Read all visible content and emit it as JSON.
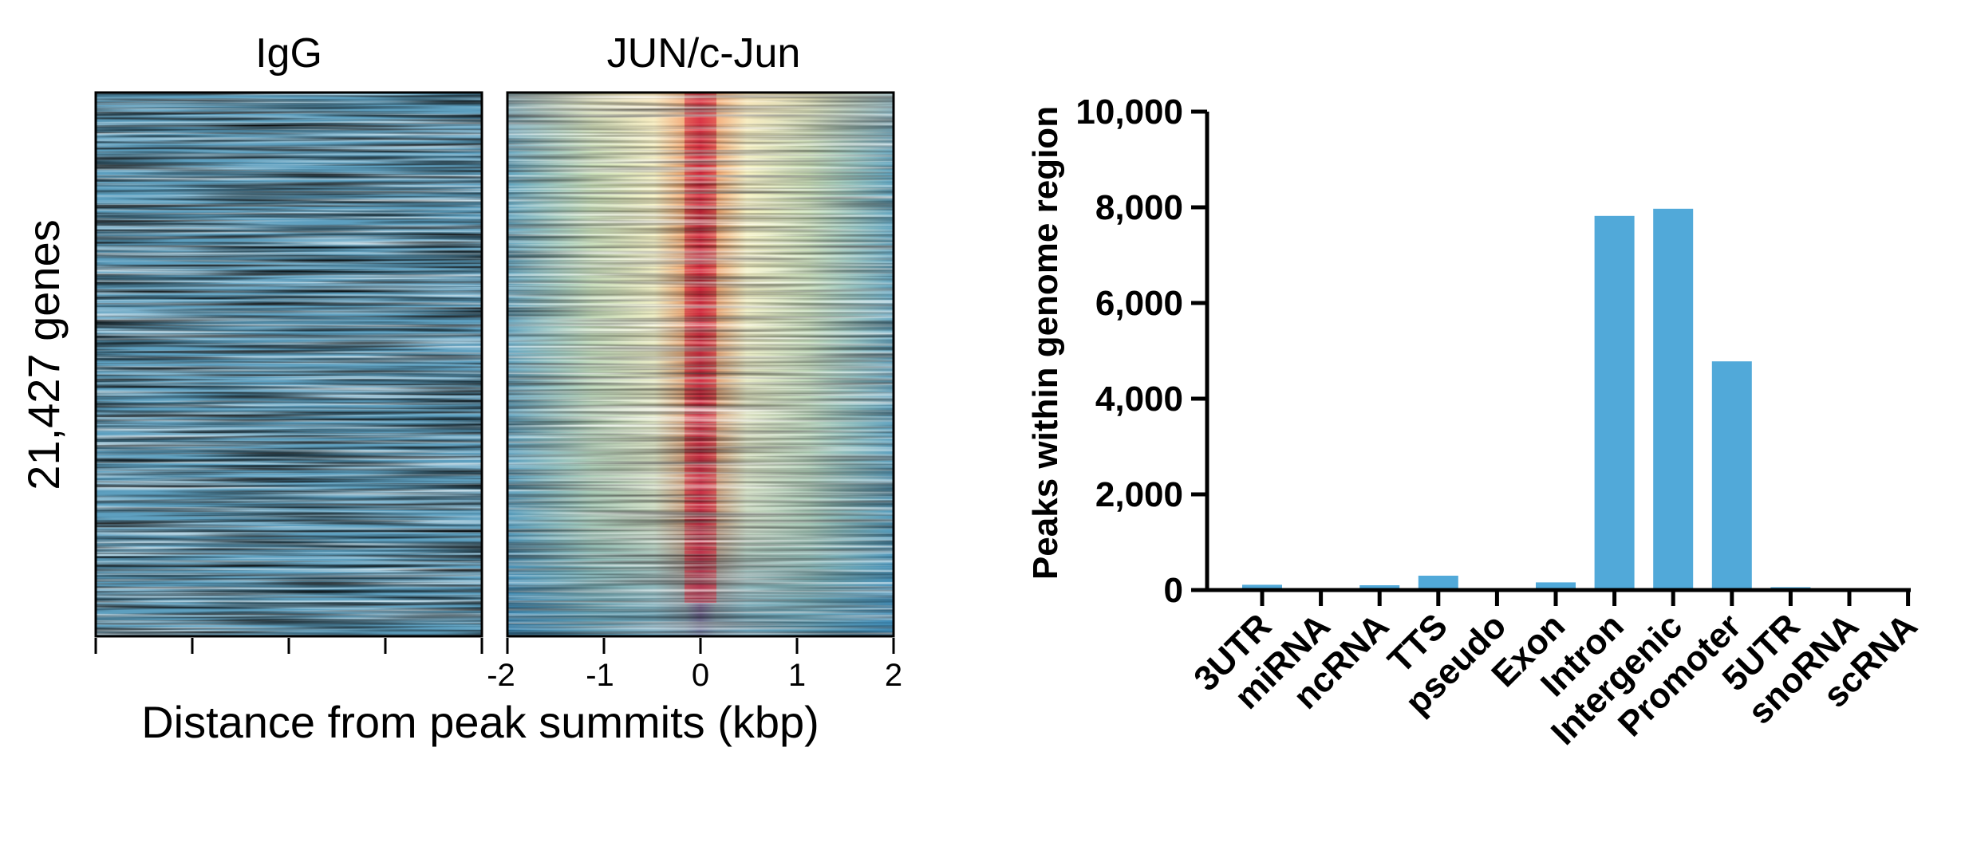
{
  "heatmaps": {
    "panel_titles": [
      "IgG",
      "JUN/c-Jun"
    ],
    "ylabel": "21,427 genes",
    "xlabel": "Distance from peak summits (kbp)",
    "xticks": [
      "-2",
      "-1",
      "0",
      "1",
      "2"
    ],
    "colors": {
      "low": "#2f7fb2",
      "mid": "#f6f2c2",
      "high": "#d7263a"
    }
  },
  "chart_data": {
    "type": "bar",
    "title": "",
    "xlabel": "",
    "ylabel": "Peaks within genome region",
    "categories": [
      "3UTR",
      "miRNA",
      "ncRNA",
      "TTS",
      "pseudo",
      "Exon",
      "Intron",
      "Intergenic",
      "Promoter",
      "5UTR",
      "snoRNA",
      "scRNA"
    ],
    "values": [
      110,
      0,
      100,
      300,
      0,
      160,
      7820,
      7970,
      4780,
      60,
      0,
      0
    ],
    "ylim": [
      0,
      10000
    ],
    "yticks": [
      "0",
      "2,000",
      "4,000",
      "6,000",
      "8,000",
      "10,000"
    ],
    "ytick_values": [
      0,
      2000,
      4000,
      6000,
      8000,
      10000
    ],
    "grid": false,
    "bar_color": "#51a9d9"
  }
}
